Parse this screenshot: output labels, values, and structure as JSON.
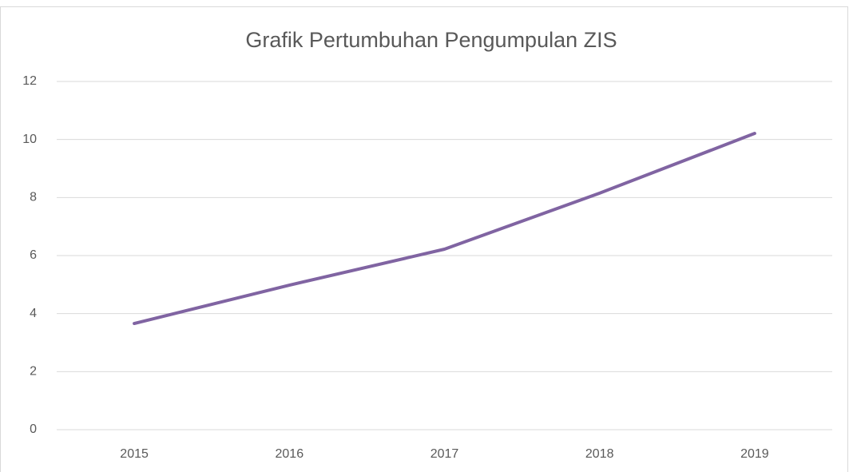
{
  "chart_data": {
    "type": "line",
    "title": "Grafik Pertumbuhan Pengumpulan ZIS",
    "categories": [
      "2015",
      "2016",
      "2017",
      "2018",
      "2019"
    ],
    "values": [
      3.66,
      4.98,
      6.22,
      8.15,
      10.21
    ],
    "color": "#8064a2",
    "ylim": [
      0,
      12
    ],
    "yticks": [
      0,
      2,
      4,
      6,
      8,
      10,
      12
    ],
    "grid": true
  }
}
